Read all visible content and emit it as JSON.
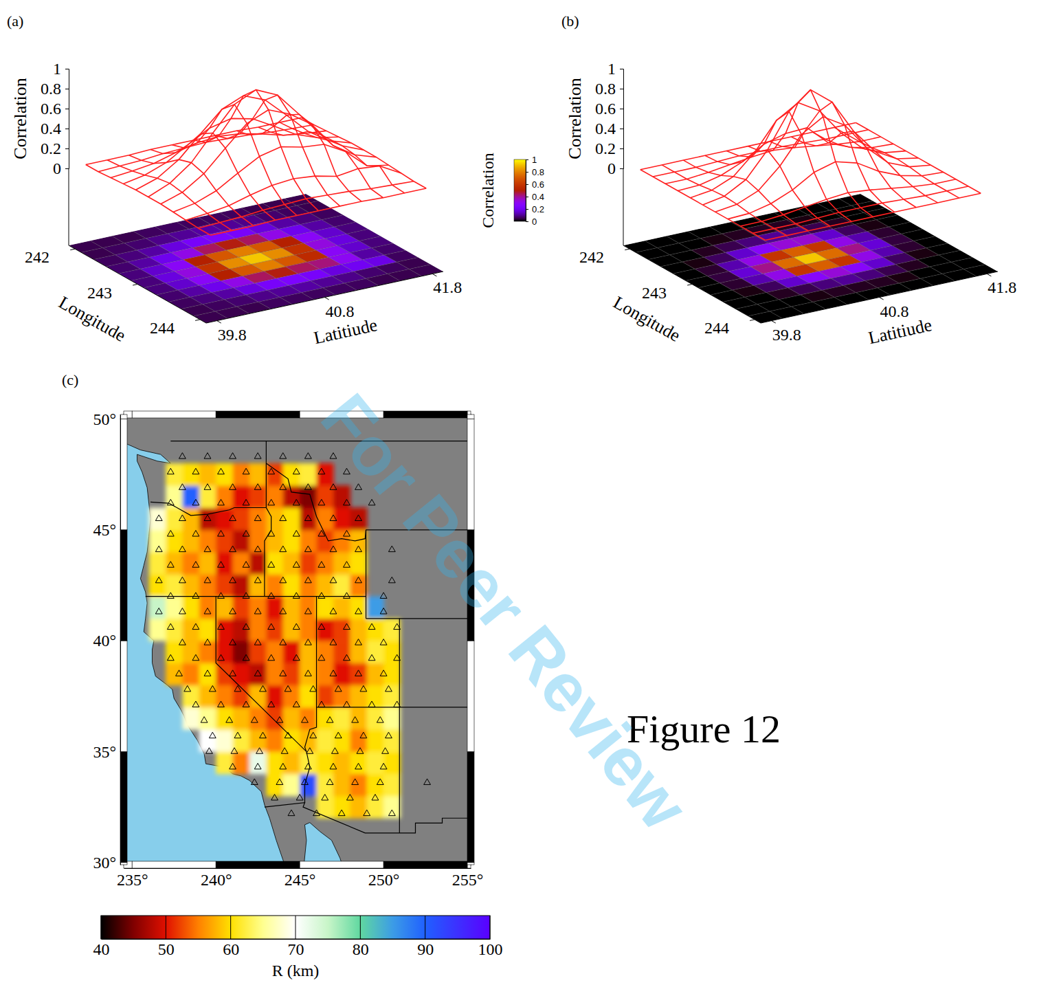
{
  "chart_data": [
    {
      "type": "surface",
      "panel": "(a)",
      "xlabel": "Longitude",
      "ylabel": "Latitiude",
      "zlabel": "Correlation",
      "x": [
        242,
        242.2,
        242.4,
        242.6,
        242.8,
        243,
        243.2,
        243.4,
        243.6,
        243.8,
        244
      ],
      "y": [
        39.8,
        40,
        40.2,
        40.4,
        40.6,
        40.8,
        41,
        41.2,
        41.4,
        41.6,
        41.8
      ],
      "z": [
        [
          0.05,
          0.05,
          0.06,
          0.07,
          0.08,
          0.08,
          0.08,
          0.07,
          0.06,
          0.05,
          0.05
        ],
        [
          0.05,
          0.06,
          0.08,
          0.11,
          0.15,
          0.17,
          0.15,
          0.11,
          0.08,
          0.06,
          0.05
        ],
        [
          0.05,
          0.07,
          0.11,
          0.19,
          0.29,
          0.33,
          0.29,
          0.19,
          0.11,
          0.07,
          0.05
        ],
        [
          0.06,
          0.09,
          0.17,
          0.32,
          0.5,
          0.58,
          0.5,
          0.32,
          0.17,
          0.09,
          0.06
        ],
        [
          0.06,
          0.1,
          0.22,
          0.44,
          0.7,
          0.82,
          0.7,
          0.44,
          0.22,
          0.1,
          0.06
        ],
        [
          0.06,
          0.11,
          0.24,
          0.49,
          0.79,
          0.92,
          0.79,
          0.49,
          0.24,
          0.11,
          0.06
        ],
        [
          0.06,
          0.1,
          0.22,
          0.44,
          0.7,
          0.82,
          0.7,
          0.44,
          0.22,
          0.1,
          0.06
        ],
        [
          0.06,
          0.09,
          0.17,
          0.32,
          0.5,
          0.58,
          0.55,
          0.42,
          0.17,
          0.09,
          0.06
        ],
        [
          0.05,
          0.07,
          0.11,
          0.19,
          0.29,
          0.33,
          0.29,
          0.3,
          0.2,
          0.07,
          0.05
        ],
        [
          0.05,
          0.06,
          0.08,
          0.11,
          0.15,
          0.17,
          0.15,
          0.11,
          0.18,
          0.06,
          0.05
        ],
        [
          0.05,
          0.05,
          0.06,
          0.07,
          0.08,
          0.08,
          0.08,
          0.07,
          0.06,
          0.05,
          0.05
        ]
      ],
      "xlim": [
        241.9,
        244.1
      ],
      "ylim": [
        39.7,
        41.9
      ],
      "zlim": [
        0,
        1
      ],
      "xticks": [
        242,
        243,
        244
      ],
      "yticks": [
        39.8,
        40.8,
        41.8
      ],
      "zticks": [
        0,
        0.2,
        0.4,
        0.6,
        0.8,
        1
      ],
      "color": "#ff2020",
      "colorbar": {
        "label": "Correlation",
        "range": [
          0,
          1
        ],
        "ticks": [
          0,
          0.2,
          0.4,
          0.6,
          0.8,
          1
        ]
      }
    },
    {
      "type": "surface",
      "panel": "(b)",
      "xlabel": "Longitude",
      "ylabel": "Latitiude",
      "zlabel": "Correlation",
      "x": [
        242,
        242.2,
        242.4,
        242.6,
        242.8,
        243,
        243.2,
        243.4,
        243.6,
        243.8,
        244
      ],
      "y": [
        39.8,
        40,
        40.2,
        40.4,
        40.6,
        40.8,
        41,
        41.2,
        41.4,
        41.6,
        41.8
      ],
      "z": [
        [
          0,
          0,
          0,
          0,
          0,
          0,
          0,
          0,
          0,
          0,
          0
        ],
        [
          0,
          0,
          0,
          0.01,
          0.03,
          0.04,
          0.03,
          0.01,
          0,
          0,
          0
        ],
        [
          0,
          0,
          0.02,
          0.06,
          0.12,
          0.16,
          0.12,
          0.06,
          0.02,
          0,
          0
        ],
        [
          0,
          0.01,
          0.05,
          0.15,
          0.32,
          0.41,
          0.32,
          0.15,
          0.05,
          0.01,
          0
        ],
        [
          0,
          0.02,
          0.08,
          0.28,
          0.59,
          0.75,
          0.59,
          0.28,
          0.08,
          0.02,
          0
        ],
        [
          0,
          0.02,
          0.1,
          0.34,
          0.72,
          0.92,
          0.72,
          0.34,
          0.1,
          0.02,
          0
        ],
        [
          0,
          0.02,
          0.08,
          0.35,
          0.59,
          0.75,
          0.59,
          0.28,
          0.08,
          0.02,
          0
        ],
        [
          0,
          0.01,
          0.05,
          0.15,
          0.32,
          0.41,
          0.32,
          0.15,
          0.05,
          0.01,
          0
        ],
        [
          0,
          0,
          0.02,
          0.06,
          0.12,
          0.16,
          0.12,
          0.06,
          0.02,
          0,
          0
        ],
        [
          0,
          0,
          0,
          0.01,
          0.03,
          0.04,
          0.03,
          0.01,
          0,
          0,
          0
        ],
        [
          0,
          0,
          0,
          0,
          0,
          0,
          0,
          0,
          0,
          0,
          0
        ]
      ],
      "xlim": [
        241.9,
        244.1
      ],
      "ylim": [
        39.7,
        41.9
      ],
      "zlim": [
        0,
        1
      ],
      "xticks": [
        242,
        243,
        244
      ],
      "yticks": [
        39.8,
        40.8,
        41.8
      ],
      "zticks": [
        0,
        0.2,
        0.4,
        0.6,
        0.8,
        1
      ],
      "color": "#ff2020"
    },
    {
      "type": "heatmap",
      "panel": "(c)",
      "x": [
        236.5,
        237.5,
        238.5,
        239.5,
        240.5,
        241.5,
        242.5,
        243.5,
        244.5,
        245.5,
        246.5,
        247.5,
        248.5,
        249.5,
        250.5
      ],
      "y": [
        32.5,
        33.5,
        34.5,
        35.5,
        36.5,
        37.5,
        38.5,
        39.5,
        40.5,
        41.5,
        42.5,
        43.5,
        44.5,
        45.5,
        46.5,
        47.5
      ],
      "values": [
        [
          null,
          null,
          null,
          null,
          null,
          null,
          null,
          null,
          null,
          null,
          62,
          60,
          58,
          62,
          65
        ],
        [
          null,
          null,
          null,
          null,
          null,
          null,
          null,
          60,
          65,
          92,
          62,
          58,
          55,
          60,
          62
        ],
        [
          null,
          null,
          null,
          null,
          62,
          55,
          72,
          60,
          58,
          62,
          60,
          58,
          60,
          62,
          60
        ],
        [
          null,
          null,
          null,
          70,
          68,
          62,
          58,
          55,
          60,
          58,
          62,
          60,
          55,
          60,
          62
        ],
        [
          null,
          null,
          68,
          65,
          60,
          58,
          55,
          52,
          58,
          55,
          60,
          62,
          58,
          62,
          65
        ],
        [
          null,
          null,
          62,
          58,
          55,
          52,
          58,
          50,
          55,
          60,
          52,
          55,
          58,
          60,
          62
        ],
        [
          null,
          58,
          55,
          60,
          52,
          50,
          48,
          55,
          52,
          58,
          55,
          50,
          52,
          58,
          60
        ],
        [
          null,
          60,
          58,
          55,
          50,
          45,
          52,
          55,
          50,
          58,
          55,
          52,
          58,
          62,
          60
        ],
        [
          65,
          62,
          58,
          60,
          50,
          48,
          55,
          52,
          58,
          55,
          50,
          52,
          58,
          60,
          62
        ],
        [
          75,
          65,
          60,
          55,
          58,
          52,
          55,
          50,
          58,
          55,
          60,
          58,
          60,
          85,
          null
        ],
        [
          60,
          62,
          58,
          55,
          52,
          48,
          58,
          55,
          60,
          55,
          58,
          62,
          55,
          null,
          null
        ],
        [
          62,
          58,
          55,
          58,
          50,
          55,
          48,
          60,
          58,
          52,
          55,
          58,
          60,
          null,
          null
        ],
        [
          65,
          60,
          58,
          55,
          52,
          48,
          55,
          58,
          60,
          55,
          52,
          55,
          58,
          null,
          null
        ],
        [
          68,
          62,
          58,
          48,
          50,
          52,
          55,
          58,
          60,
          48,
          55,
          50,
          48,
          null,
          null
        ],
        [
          null,
          65,
          90,
          62,
          55,
          50,
          52,
          55,
          48,
          45,
          52,
          48,
          null,
          null,
          null
        ],
        [
          null,
          62,
          60,
          58,
          60,
          55,
          58,
          52,
          60,
          62,
          50,
          null,
          null,
          null,
          null
        ]
      ],
      "xlim": [
        234.5,
        255.2
      ],
      "ylim": [
        29.9,
        50.2
      ],
      "xticks": [
        {
          "value": 235,
          "label": "235°"
        },
        {
          "value": 240,
          "label": "240°"
        },
        {
          "value": 245,
          "label": "245°"
        },
        {
          "value": 250,
          "label": "250°"
        },
        {
          "value": 255,
          "label": "255°"
        }
      ],
      "yticks": [
        {
          "value": 30,
          "label": "30°"
        },
        {
          "value": 35,
          "label": "35°"
        },
        {
          "value": 40,
          "label": "40°"
        },
        {
          "value": 45,
          "label": "45°"
        },
        {
          "value": 50,
          "label": "50°"
        }
      ],
      "colorbar": {
        "label": "R (km)",
        "range": [
          40,
          100
        ],
        "ticks": [
          40,
          50,
          60,
          70,
          80,
          90,
          100
        ]
      },
      "marker": "triangle",
      "stations": [
        {
          "lat": 48.3,
          "lon": [
            238,
            239.5,
            241,
            242.5,
            244,
            245.5,
            247
          ]
        },
        {
          "lat": 47.6,
          "lon": [
            237.3,
            238.8,
            240.3,
            241.8,
            243.3,
            244.8,
            246.3,
            247.8
          ]
        },
        {
          "lat": 46.9,
          "lon": [
            238,
            239.5,
            241,
            242.5,
            244,
            245.5,
            247,
            248.5
          ]
        },
        {
          "lat": 46.2,
          "lon": [
            237.3,
            238.8,
            240.3,
            241.8,
            243.3,
            244.8,
            246.3,
            247.8,
            249.3
          ]
        },
        {
          "lat": 45.5,
          "lon": [
            236.6,
            238,
            239.5,
            241,
            242.5,
            244,
            245.5,
            247,
            248.5
          ]
        },
        {
          "lat": 44.8,
          "lon": [
            237.3,
            238.8,
            240.3,
            241.8,
            243.3,
            244.8,
            246.3,
            247.8
          ]
        },
        {
          "lat": 44.1,
          "lon": [
            236.6,
            238,
            239.5,
            241,
            242.5,
            244,
            245.5,
            247,
            248.5,
            250.5
          ]
        },
        {
          "lat": 43.4,
          "lon": [
            237.3,
            238.8,
            240.3,
            241.8,
            243.3,
            244.8,
            246.3,
            247.8
          ]
        },
        {
          "lat": 42.7,
          "lon": [
            236.6,
            238,
            239.5,
            241,
            242.5,
            244,
            245.5,
            247,
            248.5,
            250.5
          ]
        },
        {
          "lat": 42,
          "lon": [
            237.3,
            238.8,
            240.3,
            241.8,
            243.3,
            244.8,
            246.3,
            247.8,
            250
          ]
        },
        {
          "lat": 41.3,
          "lon": [
            236.6,
            238,
            239.5,
            241,
            242.5,
            244,
            245.5,
            247,
            248.5,
            250
          ]
        },
        {
          "lat": 40.6,
          "lon": [
            237.3,
            238.8,
            240.3,
            241.8,
            243.3,
            244.8,
            246.3,
            247.8,
            249.3,
            250.8
          ]
        },
        {
          "lat": 39.9,
          "lon": [
            238,
            239.5,
            241,
            242.5,
            244,
            245.5,
            247,
            248.5,
            250
          ]
        },
        {
          "lat": 39.2,
          "lon": [
            237.3,
            238.8,
            240.3,
            241.8,
            243.3,
            244.8,
            246.3,
            247.8,
            249.3,
            250.8
          ]
        },
        {
          "lat": 38.5,
          "lon": [
            237.8,
            239.5,
            241,
            242.5,
            244,
            245.5,
            247,
            248.5,
            250
          ]
        },
        {
          "lat": 37.8,
          "lon": [
            238.3,
            239.8,
            241.3,
            242.8,
            244.3,
            245.8,
            247.3,
            248.8,
            250.3
          ]
        },
        {
          "lat": 37.1,
          "lon": [
            238.8,
            240.3,
            241.8,
            243.3,
            244.8,
            246.3,
            247.8,
            249.3,
            250.8
          ]
        },
        {
          "lat": 36.4,
          "lon": [
            239.3,
            240.8,
            242.3,
            243.8,
            245.3,
            246.8,
            248.3,
            249.8
          ]
        },
        {
          "lat": 35.7,
          "lon": [
            239.8,
            241.3,
            242.8,
            244.3,
            245.8,
            247.3,
            248.8,
            250.3
          ]
        },
        {
          "lat": 35,
          "lon": [
            239.6,
            241.1,
            242.6,
            244.1,
            245.6,
            247.1,
            248.6,
            250.1
          ]
        },
        {
          "lat": 34.3,
          "lon": [
            241,
            242.5,
            244,
            245.5,
            247,
            248.5,
            250
          ]
        },
        {
          "lat": 33.6,
          "lon": [
            242.3,
            243.8,
            245.3,
            246.8,
            248.3,
            249.8,
            252.6
          ]
        },
        {
          "lat": 32.9,
          "lon": [
            243.5,
            245,
            246.5,
            248,
            249.5
          ]
        },
        {
          "lat": 32.2,
          "lon": [
            244.5,
            246,
            247.5,
            249,
            250.5
          ]
        }
      ]
    }
  ],
  "figure_label": "Figure 12",
  "watermark": "For Peer Review"
}
